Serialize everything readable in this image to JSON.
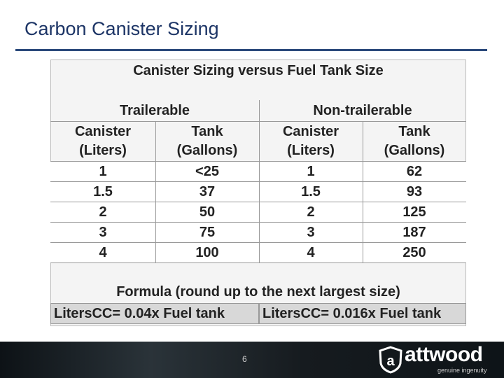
{
  "header": {
    "title": "Carbon Canister Sizing"
  },
  "table": {
    "title": "Canister Sizing versus Fuel Tank Size",
    "groups": [
      "Trailerable",
      "Non-trailerable"
    ],
    "columns": [
      {
        "name": "Canister",
        "unit": "(Liters)"
      },
      {
        "name": "Tank",
        "unit": "(Gallons)"
      },
      {
        "name": "Canister",
        "unit": "(Liters)"
      },
      {
        "name": "Tank",
        "unit": "(Gallons)"
      }
    ],
    "rows": [
      [
        1,
        "<25",
        1,
        62
      ],
      [
        1.5,
        37,
        1.5,
        93
      ],
      [
        2,
        50,
        2,
        125
      ],
      [
        3,
        75,
        3,
        187
      ],
      [
        4,
        100,
        4,
        250
      ]
    ]
  },
  "formula": {
    "title": "Formula (round up to the next largest size)",
    "cells": [
      "LitersCC= 0.04x Fuel tank",
      "LitersCC= 0.016x Fuel tank"
    ]
  },
  "footer": {
    "page_number": "6",
    "logo": "attwood",
    "tagline": "genuine ingenuity"
  }
}
